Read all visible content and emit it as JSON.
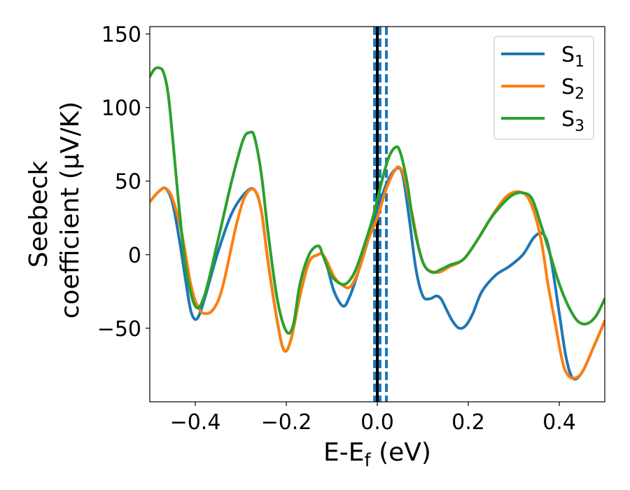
{
  "chart_data": {
    "type": "line",
    "title": "",
    "xlabel": "E-E",
    "xlabel_sub": "f",
    "xlabel_unit": " (eV)",
    "ylabel_line1": "Seebeck",
    "ylabel_line2": "coefficient  (μV/K)",
    "xlim": [
      -0.5,
      0.5
    ],
    "ylim": [
      -100,
      155
    ],
    "xticks": [
      -0.4,
      -0.2,
      0.0,
      0.2,
      0.4
    ],
    "xtick_labels": [
      "−0.4",
      "−0.2",
      "0.0",
      "0.2",
      "0.4"
    ],
    "yticks": [
      -50,
      0,
      50,
      100,
      150
    ],
    "ytick_labels": [
      "−50",
      "0",
      "50",
      "100",
      "150"
    ],
    "grid": false,
    "legend_position": "top-right",
    "vlines": [
      {
        "x": 0.0,
        "style": "solid",
        "color": "#000000"
      },
      {
        "x": -0.006,
        "style": "dashed",
        "color": "#1f77b4"
      },
      {
        "x": 0.006,
        "style": "dashed",
        "color": "#1f77b4"
      },
      {
        "x": 0.02,
        "style": "dashed",
        "color": "#1f77b4"
      }
    ],
    "series": [
      {
        "name": "S",
        "sub": "1",
        "color": "#1f77b4",
        "x": [
          -0.5,
          -0.48,
          -0.465,
          -0.45,
          -0.435,
          -0.42,
          -0.41,
          -0.4,
          -0.39,
          -0.375,
          -0.35,
          -0.32,
          -0.29,
          -0.27,
          -0.255,
          -0.24,
          -0.22,
          -0.205,
          -0.19,
          -0.17,
          -0.15,
          -0.13,
          -0.12,
          -0.11,
          -0.095,
          -0.075,
          -0.06,
          -0.04,
          -0.02,
          0.0,
          0.02,
          0.04,
          0.055,
          0.07,
          0.085,
          0.1,
          0.115,
          0.13,
          0.14,
          0.15,
          0.165,
          0.18,
          0.195,
          0.21,
          0.23,
          0.26,
          0.29,
          0.32,
          0.345,
          0.365,
          0.38,
          0.4,
          0.415,
          0.43,
          0.45,
          0.475,
          0.5
        ],
        "y": [
          36,
          43,
          45,
          35,
          10,
          -20,
          -38,
          -44,
          -40,
          -25,
          2,
          28,
          42,
          44,
          30,
          -5,
          -45,
          -65,
          -58,
          -28,
          -5,
          0,
          0,
          -8,
          -25,
          -35,
          -28,
          -10,
          10,
          30,
          48,
          58,
          55,
          25,
          -10,
          -28,
          -30,
          -28,
          -30,
          -36,
          -45,
          -50,
          -48,
          -40,
          -25,
          -14,
          -8,
          0,
          12,
          14,
          0,
          -40,
          -70,
          -84,
          -80,
          -63,
          -45
        ]
      },
      {
        "name": "S",
        "sub": "2",
        "color": "#ff7f0e",
        "x": [
          -0.5,
          -0.48,
          -0.465,
          -0.45,
          -0.43,
          -0.41,
          -0.395,
          -0.38,
          -0.36,
          -0.34,
          -0.31,
          -0.29,
          -0.27,
          -0.255,
          -0.24,
          -0.22,
          -0.205,
          -0.19,
          -0.17,
          -0.15,
          -0.13,
          -0.12,
          -0.11,
          -0.095,
          -0.08,
          -0.06,
          -0.04,
          -0.02,
          0.0,
          0.02,
          0.04,
          0.05,
          0.06,
          0.075,
          0.1,
          0.13,
          0.16,
          0.19,
          0.22,
          0.26,
          0.29,
          0.32,
          0.34,
          0.36,
          0.375,
          0.39,
          0.405,
          0.415,
          0.43,
          0.45,
          0.475,
          0.5
        ],
        "y": [
          36,
          43,
          45,
          38,
          15,
          -20,
          -35,
          -40,
          -37,
          -22,
          20,
          40,
          44,
          30,
          -5,
          -45,
          -65,
          -58,
          -28,
          -5,
          0,
          0,
          -5,
          -15,
          -20,
          -22,
          -10,
          10,
          25,
          45,
          58,
          59,
          52,
          30,
          -5,
          -12,
          -8,
          -3,
          10,
          30,
          41,
          42,
          33,
          10,
          -20,
          -45,
          -70,
          -80,
          -84,
          -80,
          -63,
          -45
        ]
      },
      {
        "name": "S",
        "sub": "3",
        "color": "#2ca02c",
        "x": [
          -0.5,
          -0.49,
          -0.48,
          -0.47,
          -0.46,
          -0.45,
          -0.435,
          -0.42,
          -0.4,
          -0.38,
          -0.35,
          -0.32,
          -0.295,
          -0.28,
          -0.27,
          -0.255,
          -0.24,
          -0.22,
          -0.2,
          -0.185,
          -0.17,
          -0.15,
          -0.13,
          -0.12,
          -0.105,
          -0.09,
          -0.07,
          -0.05,
          -0.03,
          -0.01,
          0.01,
          0.025,
          0.04,
          0.05,
          0.065,
          0.08,
          0.1,
          0.12,
          0.14,
          0.16,
          0.19,
          0.22,
          0.25,
          0.28,
          0.3,
          0.32,
          0.34,
          0.36,
          0.38,
          0.4,
          0.42,
          0.44,
          0.46,
          0.48,
          0.5
        ],
        "y": [
          121,
          126,
          127,
          124,
          110,
          80,
          30,
          -10,
          -35,
          -28,
          10,
          50,
          78,
          83,
          80,
          55,
          15,
          -30,
          -52,
          -48,
          -20,
          0,
          6,
          0,
          -12,
          -18,
          -20,
          -12,
          5,
          25,
          50,
          66,
          73,
          70,
          50,
          20,
          -5,
          -12,
          -10,
          -7,
          -3,
          10,
          25,
          36,
          41,
          42,
          38,
          20,
          0,
          -20,
          -35,
          -45,
          -47,
          -42,
          -30
        ]
      }
    ]
  }
}
